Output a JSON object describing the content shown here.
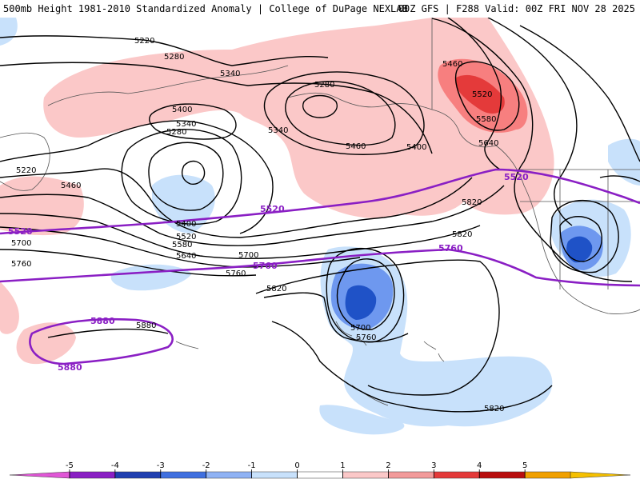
{
  "header": {
    "left_text": "500mb Height 1981-2010 Standardized Anomaly | College of DuPage NEXLAB",
    "right_text": "00Z GFS | F288 Valid: 00Z FRI NOV 28 2025"
  },
  "map": {
    "contour_interval_dm": 60,
    "black_contour_labels": [
      "5220",
      "5280",
      "5340",
      "5400",
      "5280",
      "5340",
      "5460",
      "5520",
      "5580",
      "5640",
      "5460",
      "5340",
      "5400",
      "5280",
      "5220",
      "5460",
      "5400",
      "5520",
      "5580",
      "5640",
      "5700",
      "5760",
      "5700",
      "5760",
      "5820",
      "5820",
      "5880",
      "5700",
      "5760",
      "5820",
      "5820"
    ],
    "purple_contour_labels": [
      "5520",
      "5520",
      "5520",
      "5760",
      "5760",
      "5880",
      "5880"
    ],
    "colors": {
      "anom_pos_1": "#fbc8c8",
      "anom_pos_2": "#f77f7f",
      "anom_pos_3": "#e43a3a",
      "anom_neg_1": "#c8e1fb",
      "anom_neg_2": "#6e98ef",
      "anom_neg_3": "#1f52c7",
      "height_contour": "#000000",
      "climo_contour": "#8a1fc4",
      "coastline": "#555555"
    }
  },
  "legend": {
    "ticks": [
      "-5",
      "-4",
      "-3",
      "-2",
      "-1",
      "0",
      "1",
      "2",
      "3",
      "4",
      "5"
    ],
    "colors": [
      "#e056d6",
      "#8a1fc4",
      "#1f3fb0",
      "#3f6fdf",
      "#8fb2f4",
      "#c8e1fb",
      "#ffffff",
      "#fbc8c8",
      "#f29a9a",
      "#e43a3a",
      "#b80e0e",
      "#f0a000",
      "#f5c000"
    ]
  }
}
